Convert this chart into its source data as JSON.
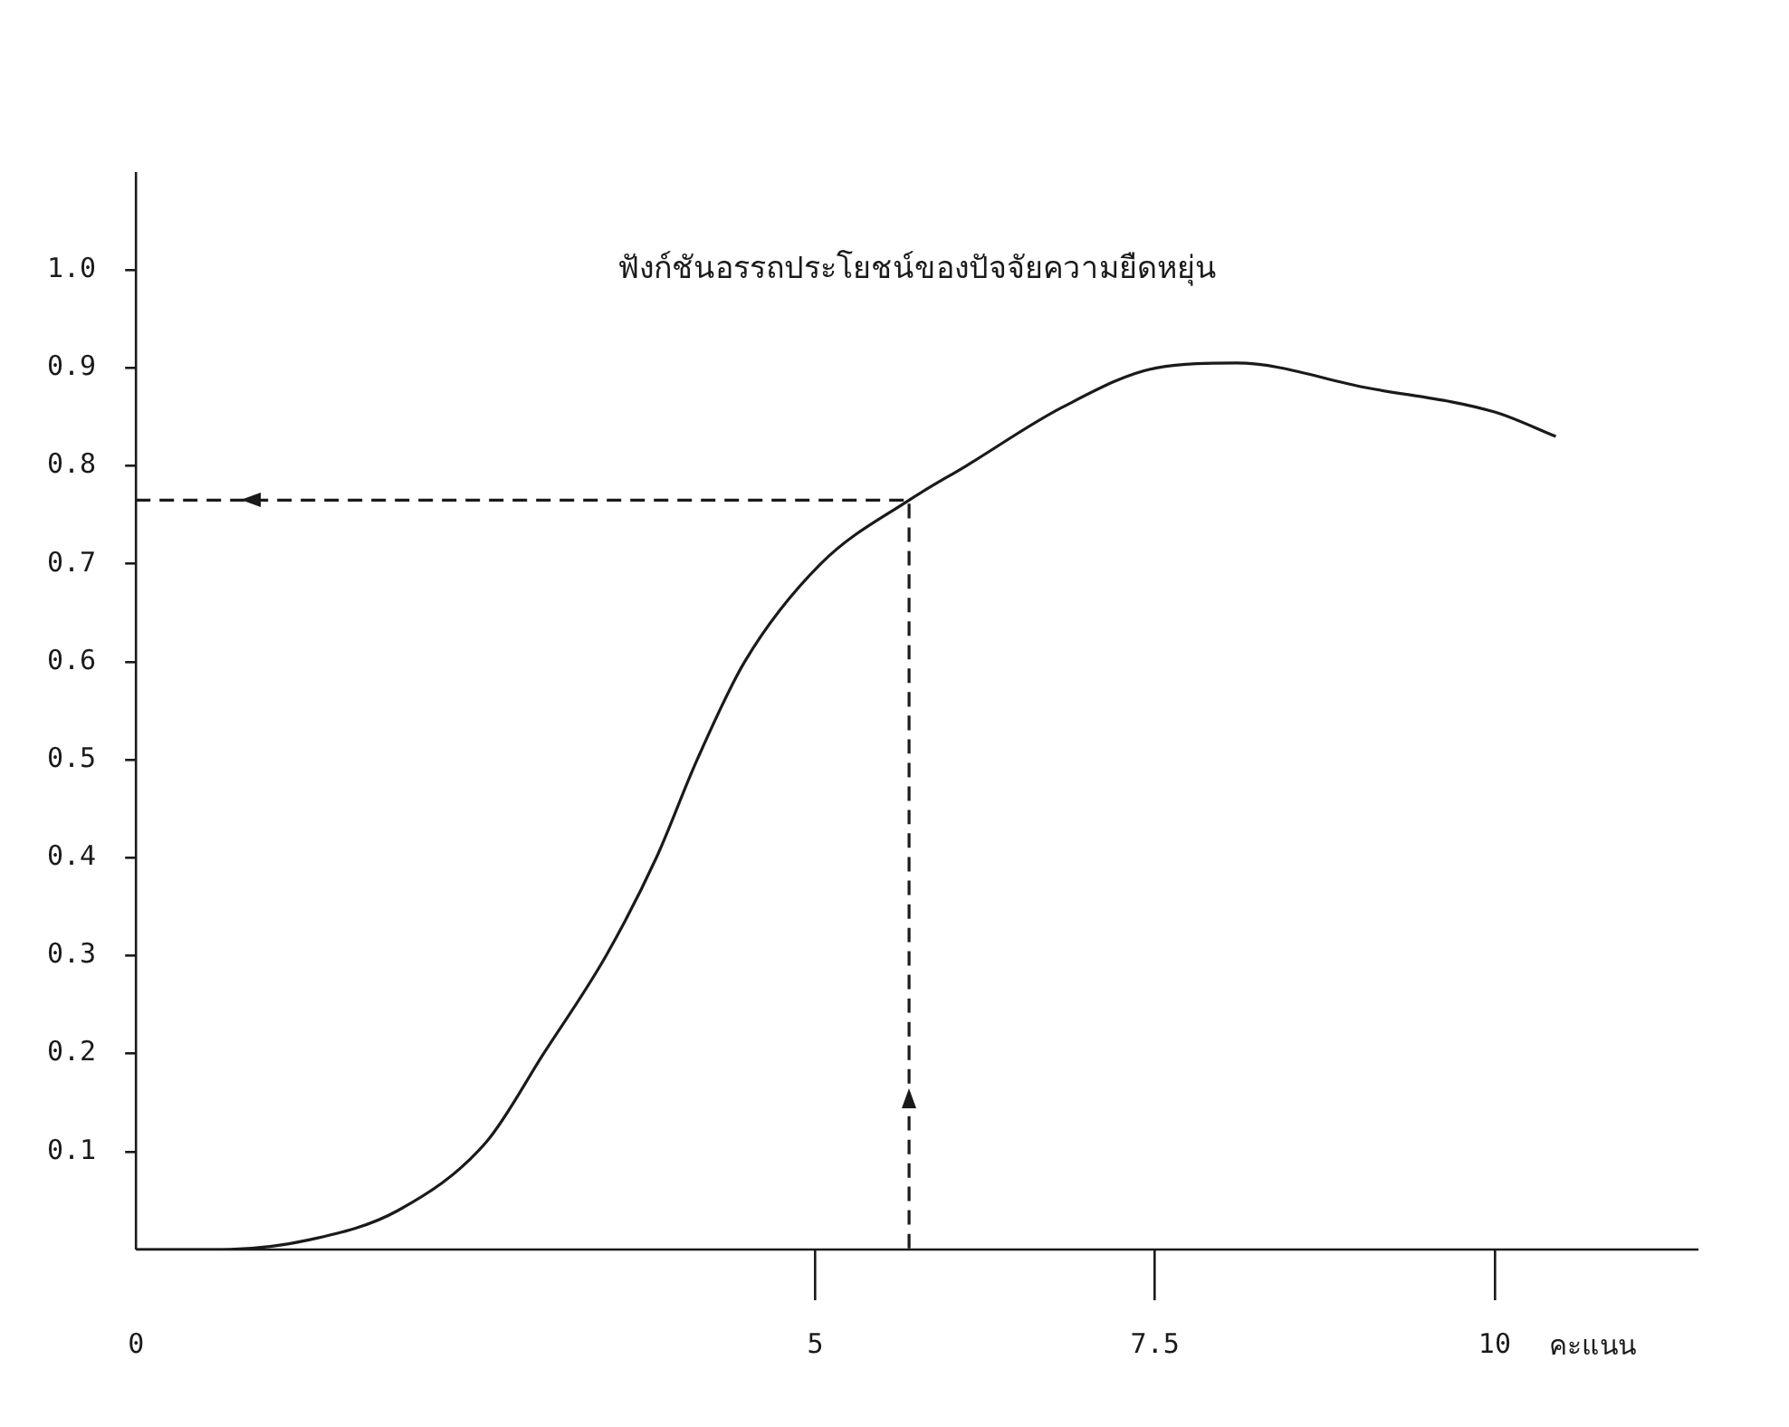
{
  "chart_data": {
    "type": "line",
    "title": "ฟังก์ชันอรรถประโยชน์ของปัจจัยความยืดหยุ่น",
    "xlabel": "คะแนน",
    "xlim": [
      0,
      11.5
    ],
    "xticks": [
      0,
      5,
      7.5,
      10
    ],
    "ylim": [
      0,
      1.1
    ],
    "yticks": [
      0.1,
      0.2,
      0.3,
      0.4,
      0.5,
      0.6,
      0.7,
      0.8,
      0.9,
      {
        "value": 1,
        "label": "1.0"
      }
    ],
    "grid": false,
    "legend": false,
    "marker": "none",
    "series": [
      {
        "color": "#1a1a1a",
        "line_style": "solid",
        "x": [
          0,
          0.63,
          1.28,
          1.93,
          2.58,
          3.0,
          3.46,
          3.83,
          4.13,
          4.48,
          5.04,
          5.69,
          6.11,
          6.82,
          7.51,
          8.1,
          9.05,
          10,
          10.45
        ],
        "values": [
          0,
          0,
          0.01,
          0.04,
          0.11,
          0.2,
          0.3,
          0.4,
          0.5,
          0.6,
          0.7,
          0.765,
          0.8,
          0.86,
          0.9,
          0.905,
          0.88,
          0.855,
          0.83
        ]
      },
      {
        "color": "#1a1a1a",
        "line_style": "dashed",
        "x": [
          0,
          5.69,
          5.69
        ],
        "values": [
          0.765,
          0.765,
          0
        ]
      }
    ]
  }
}
